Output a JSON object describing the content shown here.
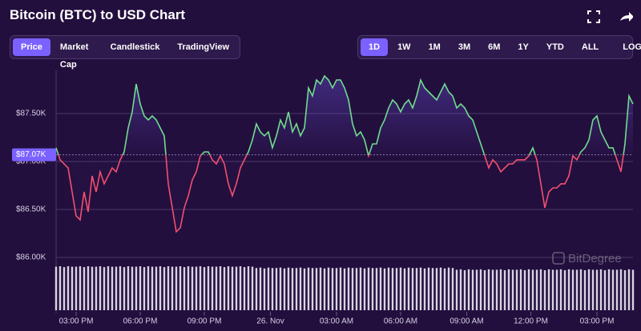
{
  "header": {
    "title": "Bitcoin (BTC) to USD Chart"
  },
  "view_tabs": [
    "Price",
    "Market Cap",
    "Candlestick",
    "TradingView"
  ],
  "active_view": 0,
  "range_tabs": [
    "1D",
    "1W",
    "1M",
    "3M",
    "6M",
    "1Y",
    "YTD",
    "ALL"
  ],
  "active_range": 0,
  "scale_toggle": "LOG",
  "watermark": "BitDegree",
  "chart_data": {
    "type": "line",
    "values": [
      87142,
      87017,
      86975,
      86933,
      86683,
      86433,
      86392,
      86683,
      86475,
      86850,
      86683,
      86892,
      86767,
      86850,
      86933,
      86892,
      87017,
      87100,
      87350,
      87517,
      87808,
      87600,
      87475,
      87433,
      87475,
      87433,
      87350,
      87267,
      86767,
      86517,
      86267,
      86308,
      86517,
      86642,
      86808,
      86892,
      87058,
      87100,
      87100,
      87017,
      86975,
      87058,
      86975,
      86767,
      86642,
      86767,
      86933,
      87017,
      87100,
      87225,
      87392,
      87308,
      87267,
      87308,
      87142,
      87267,
      87433,
      87350,
      87517,
      87308,
      87392,
      87267,
      87350,
      87767,
      87683,
      87850,
      87808,
      87892,
      87850,
      87767,
      87850,
      87850,
      87767,
      87642,
      87392,
      87267,
      87308,
      87225,
      87058,
      87183,
      87183,
      87350,
      87433,
      87558,
      87642,
      87600,
      87517,
      87600,
      87642,
      87558,
      87683,
      87850,
      87767,
      87725,
      87683,
      87642,
      87725,
      87808,
      87725,
      87683,
      87558,
      87600,
      87558,
      87475,
      87433,
      87308,
      87183,
      87058,
      86933,
      87017,
      86975,
      86892,
      86933,
      86975,
      86975,
      87017,
      87017,
      87017,
      87058,
      87142,
      87017,
      86767,
      86517,
      86683,
      86725,
      86725,
      86767,
      86767,
      86850,
      87058,
      87017,
      87100,
      87142,
      87225,
      87433,
      87475,
      87308,
      87225,
      87142,
      87142,
      87017,
      86892,
      87183,
      87683,
      87600
    ],
    "colors": {
      "above": "#6fdc8c",
      "below": "#f0506e",
      "area": "#7b61ff"
    },
    "baseline": {
      "value": 87070,
      "label": "$87.07K"
    },
    "xlim": [
      0,
      144
    ],
    "xticks": [
      {
        "value": 5,
        "label": "03:00 PM"
      },
      {
        "value": 21,
        "label": "06:00 PM"
      },
      {
        "value": 37,
        "label": "09:00 PM"
      },
      {
        "value": 53.5,
        "label": "26. Nov"
      },
      {
        "value": 70,
        "label": "03:00 AM"
      },
      {
        "value": 86,
        "label": "06:00 AM"
      },
      {
        "value": 102.5,
        "label": "09:00 AM"
      },
      {
        "value": 118.5,
        "label": "12:00 PM"
      },
      {
        "value": 135,
        "label": "03:00 PM"
      }
    ],
    "ylim": [
      85933,
      87950
    ],
    "yticks": [
      {
        "value": 86000,
        "label": "$86.00K"
      },
      {
        "value": 86500,
        "label": "$86.50K"
      },
      {
        "value": 87000,
        "label": "$87.00K"
      },
      {
        "value": 87500,
        "label": "$87.50K"
      }
    ],
    "grid": true,
    "volume": {
      "color": "#d9d4e3",
      "ylim": [
        0,
        100
      ],
      "values": [
        99,
        100,
        98,
        100,
        99,
        99,
        100,
        98,
        100,
        99,
        99,
        100,
        98,
        100,
        99,
        99,
        100,
        98,
        100,
        99,
        99,
        100,
        98,
        100,
        99,
        99,
        100,
        98,
        100,
        99,
        99,
        100,
        98,
        100,
        99,
        99,
        100,
        98,
        100,
        99,
        99,
        100,
        98,
        100,
        99,
        99,
        100,
        98,
        100,
        99,
        96,
        97,
        95,
        97,
        96,
        96,
        97,
        95,
        97,
        96,
        96,
        97,
        95,
        97,
        96,
        96,
        97,
        95,
        97,
        96,
        96,
        97,
        95,
        97,
        96,
        96,
        97,
        95,
        97,
        96,
        96,
        97,
        95,
        97,
        96,
        96,
        97,
        95,
        97,
        96,
        96,
        97,
        95,
        97,
        96,
        96,
        97,
        95,
        97,
        96,
        92,
        93,
        91,
        93,
        92,
        92,
        93,
        91,
        93,
        92,
        92,
        93,
        91,
        93,
        92,
        92,
        93,
        91,
        93,
        92,
        92,
        93,
        91,
        93,
        92,
        92,
        93,
        91,
        93,
        92,
        92,
        93,
        91,
        93,
        92,
        92,
        93,
        91,
        93,
        92,
        92,
        93,
        91,
        93,
        92
      ]
    }
  }
}
